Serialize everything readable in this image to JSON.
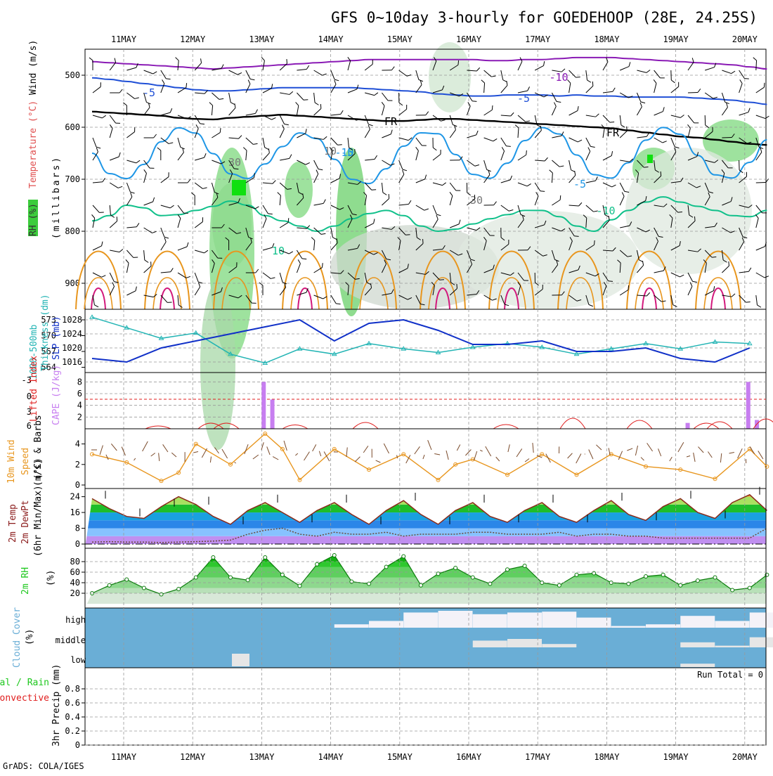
{
  "title": "GFS 0~10day 3-hourly for GOEDEHOOP (28E, 24.25S)",
  "footer": "GrADS: COLA/IGES",
  "dates": [
    "11MAY",
    "12MAY",
    "13MAY",
    "14MAY",
    "15MAY",
    "16MAY",
    "17MAY",
    "18MAY",
    "19MAY",
    "20MAY"
  ],
  "colors": {
    "purple": "#8a1ab5",
    "blue": "#1f4fd6",
    "lightblue": "#1e96e6",
    "teal": "#10c08a",
    "orange": "#e8961e",
    "magenta": "#d2197c",
    "cyan": "#22b4b4",
    "navy": "#1030c8",
    "red": "#e01e1e",
    "violet": "#c77ef0",
    "cloud": "#6aaed6",
    "green": "#1ec81e"
  },
  "panels": {
    "upper": {
      "labels": {
        "rh": "RH (%)",
        "temp": "Temperature (°C)",
        "wind": "Wind (m/s)",
        "unit": "(millibars)"
      },
      "contour_labels": [
        "-10",
        "-5",
        "-5",
        "-10",
        "FR",
        "FR",
        "-5",
        "-5",
        "-10",
        "10",
        "30",
        "30",
        "10"
      ]
    },
    "slp": {
      "labels": {
        "thk1": "1000-500mb",
        "thk2": "Thickness (dm)",
        "slp": "SLP (mb)"
      }
    },
    "cape": {
      "labels": {
        "li": "Lifted Index",
        "cape": "CAPE (J/kg)"
      }
    },
    "wind10": {
      "labels": {
        "l1": "10m Wind",
        "l2": "Speed",
        "l3": "(m/s) & Barbs"
      }
    },
    "temp2m": {
      "labels": {
        "l1": "2m Temp",
        "l2": "2m DewPt",
        "l3": "(6hr Min/Max) (°C)"
      }
    },
    "rh2m": {
      "labels": {
        "l1": "2m RH",
        "l2": "(%)"
      }
    },
    "cloud": {
      "labels": {
        "l1": "Cloud Cover",
        "l2": "(%)",
        "high": "high",
        "middle": "middle",
        "low": "low"
      }
    },
    "precip": {
      "labels": {
        "total": "Total / Rain",
        "conv": "Convective",
        "unit": "3hr Precip (mm)",
        "run_total": "Run Total = 0"
      }
    }
  },
  "chart_data": [
    {
      "type": "line",
      "title": "Temperature (°C) contours by pressure level",
      "ylabel": "millibars",
      "ylim": [
        950,
        450
      ],
      "yticks": [
        500,
        600,
        700,
        800,
        900
      ],
      "x_days": [
        0,
        0.25,
        0.5,
        0.75,
        1,
        1.25,
        1.5,
        1.75,
        2,
        2.25,
        2.5,
        2.75,
        3,
        3.25,
        3.5,
        3.75,
        4,
        4.25,
        4.5,
        4.75,
        5,
        5.25,
        5.5,
        5.75,
        6,
        6.25,
        6.5,
        6.75,
        7,
        7.25,
        7.5,
        7.75,
        8,
        8.25,
        8.5,
        8.75,
        9,
        9.25,
        9.5,
        9.75
      ],
      "series": [
        {
          "name": "-10 (upper)",
          "values": [
            474,
            476,
            478,
            480,
            482,
            484,
            486,
            488,
            486,
            484,
            482,
            480,
            478,
            476,
            474,
            472,
            470,
            470,
            470,
            470,
            470,
            470,
            470,
            472,
            472,
            470,
            470,
            468,
            466,
            466,
            466,
            468,
            470,
            472,
            474,
            476,
            478,
            480,
            484,
            488
          ]
        },
        {
          "name": "-5",
          "values": [
            505,
            508,
            512,
            516,
            520,
            524,
            528,
            530,
            530,
            528,
            526,
            524,
            524,
            524,
            524,
            524,
            526,
            528,
            530,
            532,
            536,
            538,
            540,
            540,
            538,
            538,
            538,
            540,
            538,
            540,
            540,
            542,
            542,
            542,
            542,
            544,
            546,
            548,
            552,
            556
          ]
        },
        {
          "name": "FR",
          "values": [
            570,
            572,
            574,
            576,
            578,
            582,
            584,
            585,
            582,
            580,
            578,
            576,
            578,
            580,
            582,
            584,
            586,
            588,
            588,
            586,
            584,
            584,
            586,
            588,
            590,
            592,
            594,
            596,
            598,
            600,
            602,
            606,
            610,
            614,
            618,
            620,
            624,
            628,
            632,
            634
          ]
        },
        {
          "name": "-10 (lower)",
          "values": [
            780,
            770,
            750,
            755,
            770,
            768,
            760,
            752,
            742,
            750,
            770,
            780,
            790,
            800,
            790,
            776,
            766,
            760,
            770,
            790,
            800,
            796,
            786,
            776,
            768,
            760,
            760,
            772,
            790,
            800,
            778,
            760,
            744,
            734,
            744,
            752,
            760,
            770,
            772,
            760
          ]
        }
      ]
    },
    {
      "type": "line",
      "title": "1000-500mb Thickness (dm) & SLP (mb)",
      "x_days": [
        0,
        0.5,
        1,
        1.5,
        2,
        2.5,
        3,
        3.5,
        4,
        4.5,
        5,
        5.5,
        6,
        6.5,
        7,
        7.5,
        8,
        8.5,
        9,
        9.5
      ],
      "series": [
        {
          "name": "Thickness (dm)",
          "axis": "573-564",
          "values": [
            573.5,
            571.5,
            569.5,
            570.5,
            566.5,
            564.8,
            567.5,
            566.5,
            568.5,
            567.5,
            566.8,
            567.8,
            568.5,
            567.8,
            566.5,
            567.5,
            568.5,
            567.5,
            568.8,
            568.5
          ]
        },
        {
          "name": "SLP (mb)",
          "axis": "1016-1028",
          "values": [
            1017,
            1016,
            1020,
            1022,
            1024,
            1026,
            1028,
            1022,
            1027,
            1028,
            1025,
            1021,
            1021,
            1022,
            1019,
            1019,
            1020,
            1017,
            1016,
            1020
          ]
        }
      ]
    },
    {
      "type": "bar",
      "title": "CAPE (J/kg) & Lifted Index",
      "x_days": [
        2.5,
        2.625,
        8.625,
        9.5,
        9.625
      ],
      "series": [
        {
          "name": "CAPE (J/kg)",
          "values": [
            8,
            5,
            1,
            8,
            1.5
          ]
        },
        {
          "name": "Lifted Index peaks",
          "values": [
            4.8,
            4.3,
            3,
            2,
            4.5
          ]
        }
      ],
      "ylim": [
        0,
        9
      ]
    },
    {
      "type": "line",
      "title": "10m Wind Speed (m/s)",
      "ylim": [
        0,
        5
      ],
      "x_days": [
        0,
        0.5,
        1,
        1.25,
        1.5,
        2,
        2.5,
        2.75,
        3,
        3.5,
        4,
        4.5,
        5,
        5.25,
        5.5,
        6,
        6.5,
        7,
        7.5,
        8,
        8.5,
        9,
        9.5,
        9.75
      ],
      "series": [
        {
          "name": "Speed",
          "values": [
            3,
            2.2,
            0.4,
            1.2,
            4,
            2,
            5,
            3.5,
            0.5,
            3.5,
            1.5,
            3,
            0.5,
            2,
            2.5,
            1,
            3,
            1,
            3,
            1.8,
            1.5,
            0.6,
            3.5,
            1.8
          ]
        }
      ]
    },
    {
      "type": "area",
      "title": "2m Temp & DewPt (°C)",
      "ylim": [
        0,
        26
      ],
      "x_days": [
        0,
        0.25,
        0.5,
        0.75,
        1,
        1.25,
        1.5,
        1.75,
        2,
        2.25,
        2.5,
        2.75,
        3,
        3.25,
        3.5,
        3.75,
        4,
        4.25,
        4.5,
        4.75,
        5,
        5.25,
        5.5,
        5.75,
        6,
        6.25,
        6.5,
        6.75,
        7,
        7.25,
        7.5,
        7.75,
        8,
        8.25,
        8.5,
        8.75,
        9,
        9.25,
        9.5,
        9.75
      ],
      "series": [
        {
          "name": "2m Temp",
          "values": [
            23,
            18,
            14,
            13,
            19,
            24,
            20,
            14,
            10,
            17,
            21,
            16,
            11,
            17,
            21,
            15,
            10,
            17,
            22,
            15,
            10,
            17,
            21,
            14,
            11,
            17,
            21,
            14,
            11,
            17,
            22,
            15,
            12,
            19,
            23,
            16,
            13,
            21,
            25,
            17
          ]
        },
        {
          "name": "2m DewPt",
          "values": [
            1,
            1.2,
            1,
            1,
            0.8,
            1,
            1.2,
            1.5,
            2,
            5,
            7,
            8,
            5,
            4,
            6,
            5,
            5,
            6,
            4,
            5,
            5,
            5,
            6,
            6,
            5,
            5,
            5,
            6,
            4,
            5,
            5,
            4,
            4,
            3,
            3,
            3,
            3,
            3,
            3,
            8
          ]
        }
      ]
    },
    {
      "type": "area",
      "title": "2m RH (%)",
      "ylim": [
        0,
        100
      ],
      "x_days": [
        0,
        0.25,
        0.5,
        0.75,
        1,
        1.25,
        1.5,
        1.75,
        2,
        2.25,
        2.5,
        2.75,
        3,
        3.25,
        3.5,
        3.75,
        4,
        4.25,
        4.5,
        4.75,
        5,
        5.25,
        5.5,
        5.75,
        6,
        6.25,
        6.5,
        6.75,
        7,
        7.25,
        7.5,
        7.75,
        8,
        8.25,
        8.5,
        8.75,
        9,
        9.25,
        9.5,
        9.75
      ],
      "series": [
        {
          "name": "2m RH",
          "values": [
            20,
            35,
            46,
            30,
            18,
            28,
            50,
            88,
            50,
            45,
            88,
            55,
            34,
            75,
            92,
            42,
            38,
            70,
            90,
            35,
            57,
            68,
            50,
            38,
            65,
            72,
            40,
            35,
            55,
            58,
            40,
            38,
            52,
            55,
            35,
            44,
            50,
            26,
            30,
            55
          ]
        }
      ]
    },
    {
      "type": "heatmap",
      "title": "Cloud Cover (%)",
      "levels": [
        "high",
        "middle",
        "low"
      ],
      "x_days": [
        3.5,
        4,
        4.5,
        5,
        5.5,
        6,
        6.5,
        7,
        7.5,
        8,
        8.5,
        9,
        9.5
      ],
      "values": [
        [
          20,
          40,
          90,
          100,
          80,
          90,
          95,
          60,
          10,
          20,
          70,
          40,
          90
        ],
        [
          0,
          0,
          0,
          0,
          40,
          50,
          20,
          0,
          0,
          0,
          30,
          10,
          60
        ],
        [
          0,
          0,
          0,
          0,
          0,
          0,
          0,
          0,
          0,
          0,
          20,
          0,
          0
        ]
      ]
    },
    {
      "type": "line",
      "title": "3hr Precip (mm)",
      "ylim": [
        0,
        0.9
      ],
      "yticks": [
        0,
        0.2,
        0.4,
        0.6,
        0.8
      ],
      "series": [
        {
          "name": "Total / Rain",
          "values": [
            0
          ]
        },
        {
          "name": "Convective",
          "values": [
            0
          ]
        }
      ]
    }
  ]
}
